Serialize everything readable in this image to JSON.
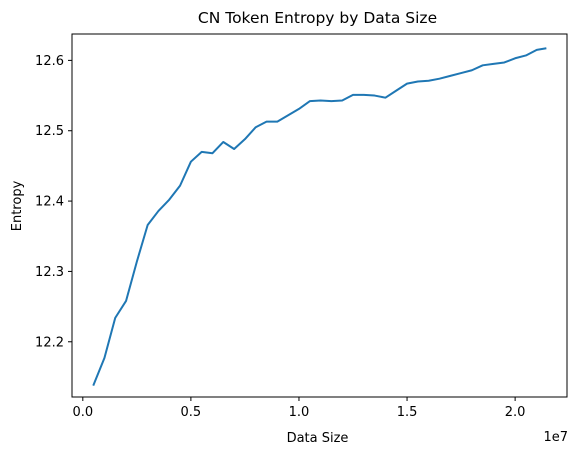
{
  "chart_data": {
    "type": "line",
    "title": "CN Token Entropy by Data Size",
    "xlabel": "Data Size",
    "ylabel": "Entropy",
    "x_offset_text": "1e7",
    "xlim": [
      -500000,
      22400000
    ],
    "ylim": [
      12.1215,
      12.6375
    ],
    "xticks": [
      0,
      5000000,
      10000000,
      15000000,
      20000000
    ],
    "xtick_labels": [
      "0.0",
      "0.5",
      "1.0",
      "1.5",
      "2.0"
    ],
    "yticks": [
      12.2,
      12.3,
      12.4,
      12.5,
      12.6
    ],
    "ytick_labels": [
      "12.2",
      "12.3",
      "12.4",
      "12.5",
      "12.6"
    ],
    "grid": false,
    "series": [
      {
        "color": "#1f77b4",
        "x": [
          500000,
          1000000,
          1500000,
          2000000,
          2500000,
          3000000,
          3500000,
          4000000,
          4500000,
          5000000,
          5500000,
          6000000,
          6500000,
          7000000,
          7500000,
          8000000,
          8500000,
          9000000,
          9500000,
          10000000,
          10500000,
          11000000,
          11500000,
          12000000,
          12500000,
          13000000,
          13500000,
          14000000,
          14500000,
          15000000,
          15500000,
          16000000,
          16500000,
          17000000,
          17500000,
          18000000,
          18500000,
          19000000,
          19500000,
          20000000,
          20500000,
          21000000,
          21400000
        ],
        "y": [
          12.139,
          12.177,
          12.234,
          12.258,
          12.314,
          12.366,
          12.386,
          12.402,
          12.422,
          12.456,
          12.47,
          12.468,
          12.484,
          12.474,
          12.488,
          12.505,
          12.513,
          12.513,
          12.522,
          12.531,
          12.542,
          12.543,
          12.542,
          12.543,
          12.551,
          12.551,
          12.55,
          12.547,
          12.557,
          12.567,
          12.57,
          12.571,
          12.574,
          12.578,
          12.582,
          12.586,
          12.593,
          12.595,
          12.597,
          12.603,
          12.607,
          12.615,
          12.617
        ]
      }
    ]
  }
}
